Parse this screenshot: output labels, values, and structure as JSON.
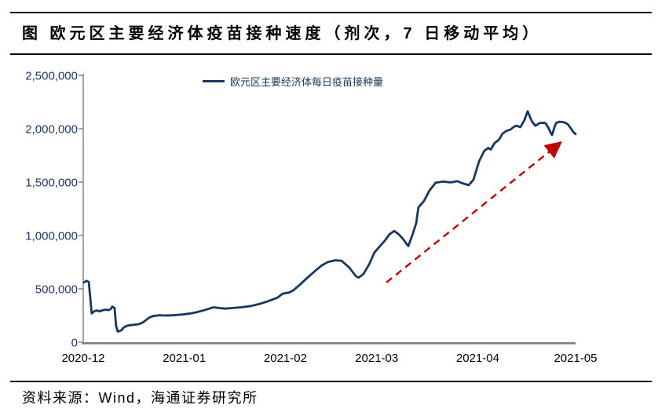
{
  "title": {
    "text": "图  欧元区主要经济体疫苗接种速度（剂次，7 日移动平均）"
  },
  "legend": {
    "label": "欧元区主要经济体每日疫苗接种量"
  },
  "source": {
    "text": "资料来源：Wind，海通证券研究所"
  },
  "colors": {
    "line": "#17375e",
    "arrow": "#c00000",
    "axis": "#7f7f7f",
    "y_label": "#1f3864",
    "x_label": "#000000"
  },
  "chart_data": {
    "type": "line",
    "title": "欧元区主要经济体疫苗接种速度（剂次，7 日移动平均）",
    "xlabel": "",
    "ylabel": "",
    "legend_position": "top-center",
    "grid": false,
    "ylim": [
      0,
      2500000
    ],
    "y_ticks": [
      0,
      500000,
      1000000,
      1500000,
      2000000,
      2500000
    ],
    "y_tick_labels": [
      "0",
      "500,000",
      "1,000,000",
      "1,500,000",
      "2,000,000",
      "2,500,000"
    ],
    "x_tick_labels": [
      "2020-12",
      "2021-01",
      "2021-02",
      "2021-03",
      "2021-04",
      "2021-05"
    ],
    "x_tick_days": [
      0,
      31,
      62,
      90,
      121,
      151
    ],
    "x_day_zero": "2020-12-01",
    "xlim_days": [
      0,
      151
    ],
    "series": [
      {
        "name": "欧元区主要经济体每日疫苗接种量",
        "points": [
          [
            0.2,
            560000
          ],
          [
            1,
            575000
          ],
          [
            1.7,
            565000
          ],
          [
            2.6,
            270000
          ],
          [
            3.4,
            290000
          ],
          [
            4.1,
            297000
          ],
          [
            5.1,
            290000
          ],
          [
            6,
            300000
          ],
          [
            7,
            305000
          ],
          [
            7.7,
            300000
          ],
          [
            8.4,
            310000
          ],
          [
            8.9,
            334000
          ],
          [
            9.6,
            320000
          ],
          [
            10.1,
            150000
          ],
          [
            10.6,
            100000
          ],
          [
            11.6,
            110000
          ],
          [
            12.5,
            140000
          ],
          [
            13.5,
            155000
          ],
          [
            14.7,
            160000
          ],
          [
            15.9,
            165000
          ],
          [
            17.1,
            170000
          ],
          [
            18.3,
            185000
          ],
          [
            20.2,
            230000
          ],
          [
            21.4,
            245000
          ],
          [
            23.4,
            253000
          ],
          [
            25,
            250000
          ],
          [
            27.4,
            252000
          ],
          [
            29.9,
            258000
          ],
          [
            32.3,
            267000
          ],
          [
            34.7,
            280000
          ],
          [
            37.1,
            300000
          ],
          [
            40,
            327000
          ],
          [
            41.9,
            320000
          ],
          [
            43.6,
            315000
          ],
          [
            45.5,
            320000
          ],
          [
            48.4,
            327000
          ],
          [
            51.5,
            340000
          ],
          [
            53.9,
            357000
          ],
          [
            56.3,
            380000
          ],
          [
            59.5,
            416000
          ],
          [
            61.2,
            455000
          ],
          [
            63.1,
            465000
          ],
          [
            64.3,
            483000
          ],
          [
            66.5,
            540000
          ],
          [
            68.4,
            594000
          ],
          [
            71.5,
            678000
          ],
          [
            73.2,
            720000
          ],
          [
            75.1,
            752000
          ],
          [
            77.3,
            768000
          ],
          [
            79.2,
            763000
          ],
          [
            81.6,
            700000
          ],
          [
            83.6,
            620000
          ],
          [
            84.5,
            605000
          ],
          [
            86,
            641000
          ],
          [
            87.7,
            730000
          ],
          [
            89.3,
            840000
          ],
          [
            91,
            900000
          ],
          [
            92.5,
            951000
          ],
          [
            93.9,
            1010000
          ],
          [
            95.4,
            1043000
          ],
          [
            96.8,
            1010000
          ],
          [
            98,
            970000
          ],
          [
            99,
            928000
          ],
          [
            99.7,
            901000
          ],
          [
            100.9,
            1000000
          ],
          [
            102.1,
            1114000
          ],
          [
            102.8,
            1263000
          ],
          [
            104.5,
            1322000
          ],
          [
            106.2,
            1421000
          ],
          [
            108.1,
            1495000
          ],
          [
            109.3,
            1500000
          ],
          [
            110.5,
            1505000
          ],
          [
            111.7,
            1500000
          ],
          [
            112.9,
            1498000
          ],
          [
            114.1,
            1505000
          ],
          [
            114.9,
            1508000
          ],
          [
            115.8,
            1495000
          ],
          [
            116.6,
            1486000
          ],
          [
            118.2,
            1471000
          ],
          [
            119.7,
            1523000
          ],
          [
            121.4,
            1694000
          ],
          [
            123,
            1793000
          ],
          [
            124.2,
            1820000
          ],
          [
            125,
            1805000
          ],
          [
            126.2,
            1867000
          ],
          [
            127.6,
            1900000
          ],
          [
            128.6,
            1954000
          ],
          [
            129.8,
            1980000
          ],
          [
            131,
            1991000
          ],
          [
            132.2,
            2020000
          ],
          [
            132.9,
            2028000
          ],
          [
            134.1,
            2015000
          ],
          [
            135.3,
            2080000
          ],
          [
            136.3,
            2164000
          ],
          [
            137.3,
            2090000
          ],
          [
            137.7,
            2065000
          ],
          [
            138.7,
            2028000
          ],
          [
            139.9,
            2052000
          ],
          [
            141.1,
            2055000
          ],
          [
            141.8,
            2052000
          ],
          [
            142.8,
            2000000
          ],
          [
            143.5,
            1954000
          ],
          [
            143.8,
            1941000
          ],
          [
            144.5,
            2010000
          ],
          [
            145,
            2052000
          ],
          [
            145.9,
            2065000
          ],
          [
            146.9,
            2063000
          ],
          [
            147.9,
            2055000
          ],
          [
            148.6,
            2043000
          ],
          [
            149.5,
            2006000
          ],
          [
            150.3,
            1969000
          ],
          [
            151,
            1950000
          ]
        ]
      }
    ],
    "annotations": [
      {
        "type": "arrow",
        "style": "dashed",
        "color": "#c00000",
        "from_day": 93,
        "from_value": 560000,
        "to_day": 146,
        "to_value": 1860000
      }
    ]
  }
}
